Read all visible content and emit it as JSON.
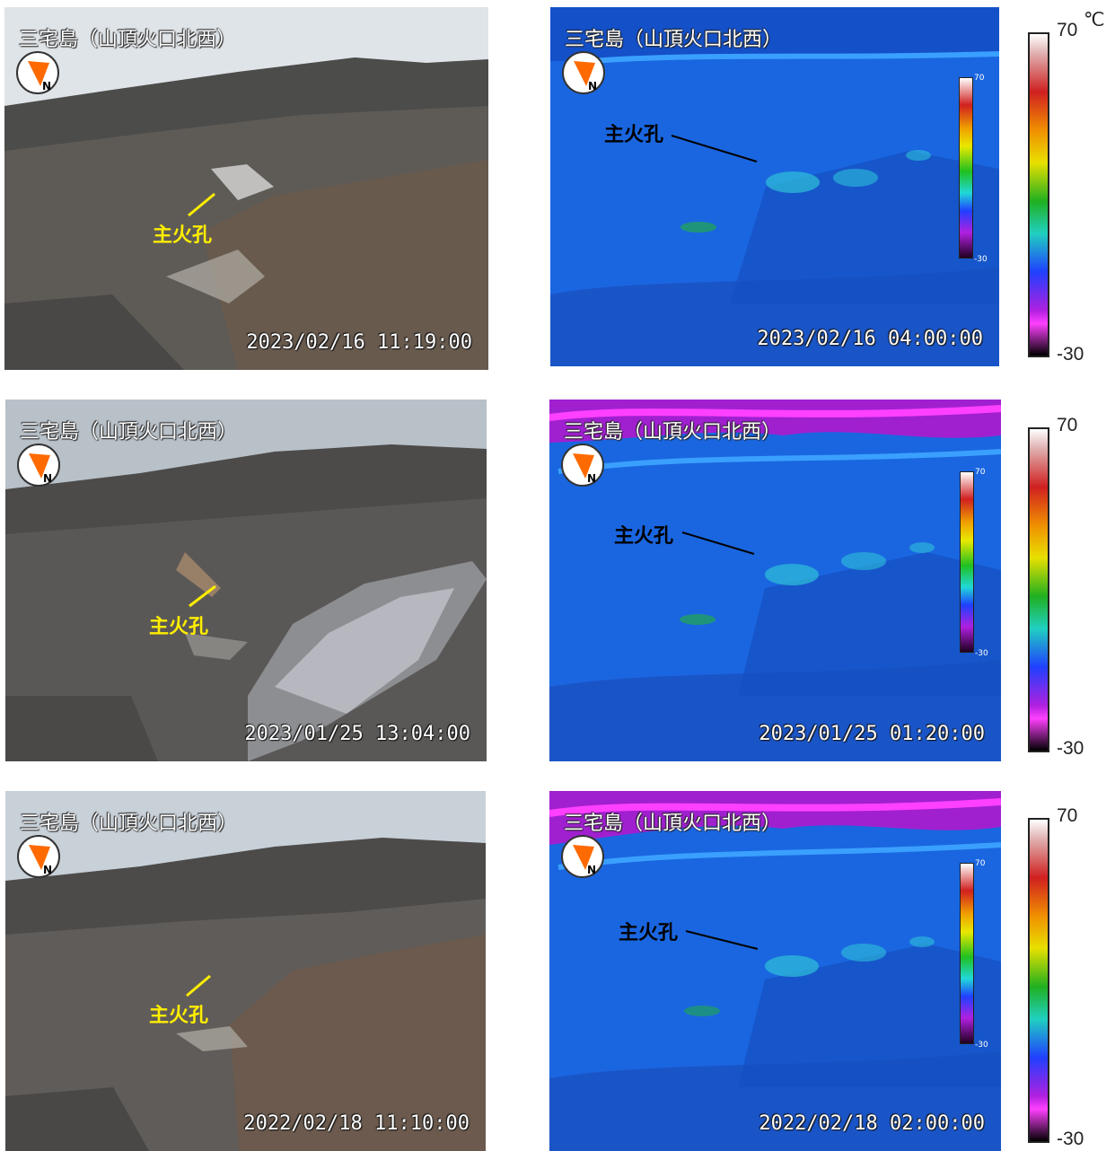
{
  "camera_title": "三宅島（山頂火口北西）",
  "vent_label": "主火孔",
  "colorbar": {
    "max": "70",
    "min": "-30",
    "unit": "℃"
  },
  "inner_scale": {
    "max": "70",
    "min": "-30"
  },
  "colors": {
    "vent_label_visible": "#ffee00",
    "vent_label_thermal": "#000000",
    "thermal_background": "#1a66e0"
  },
  "rows": [
    {
      "visible_timestamp": "2023/02/16 11:19:00",
      "thermal_timestamp": "2023/02/16 04:00:00"
    },
    {
      "visible_timestamp": "2023/01/25 13:04:00",
      "thermal_timestamp": "2023/01/25 01:20:00"
    },
    {
      "visible_timestamp": "2022/02/18 11:10:00",
      "thermal_timestamp": "2022/02/18 02:00:00"
    }
  ]
}
